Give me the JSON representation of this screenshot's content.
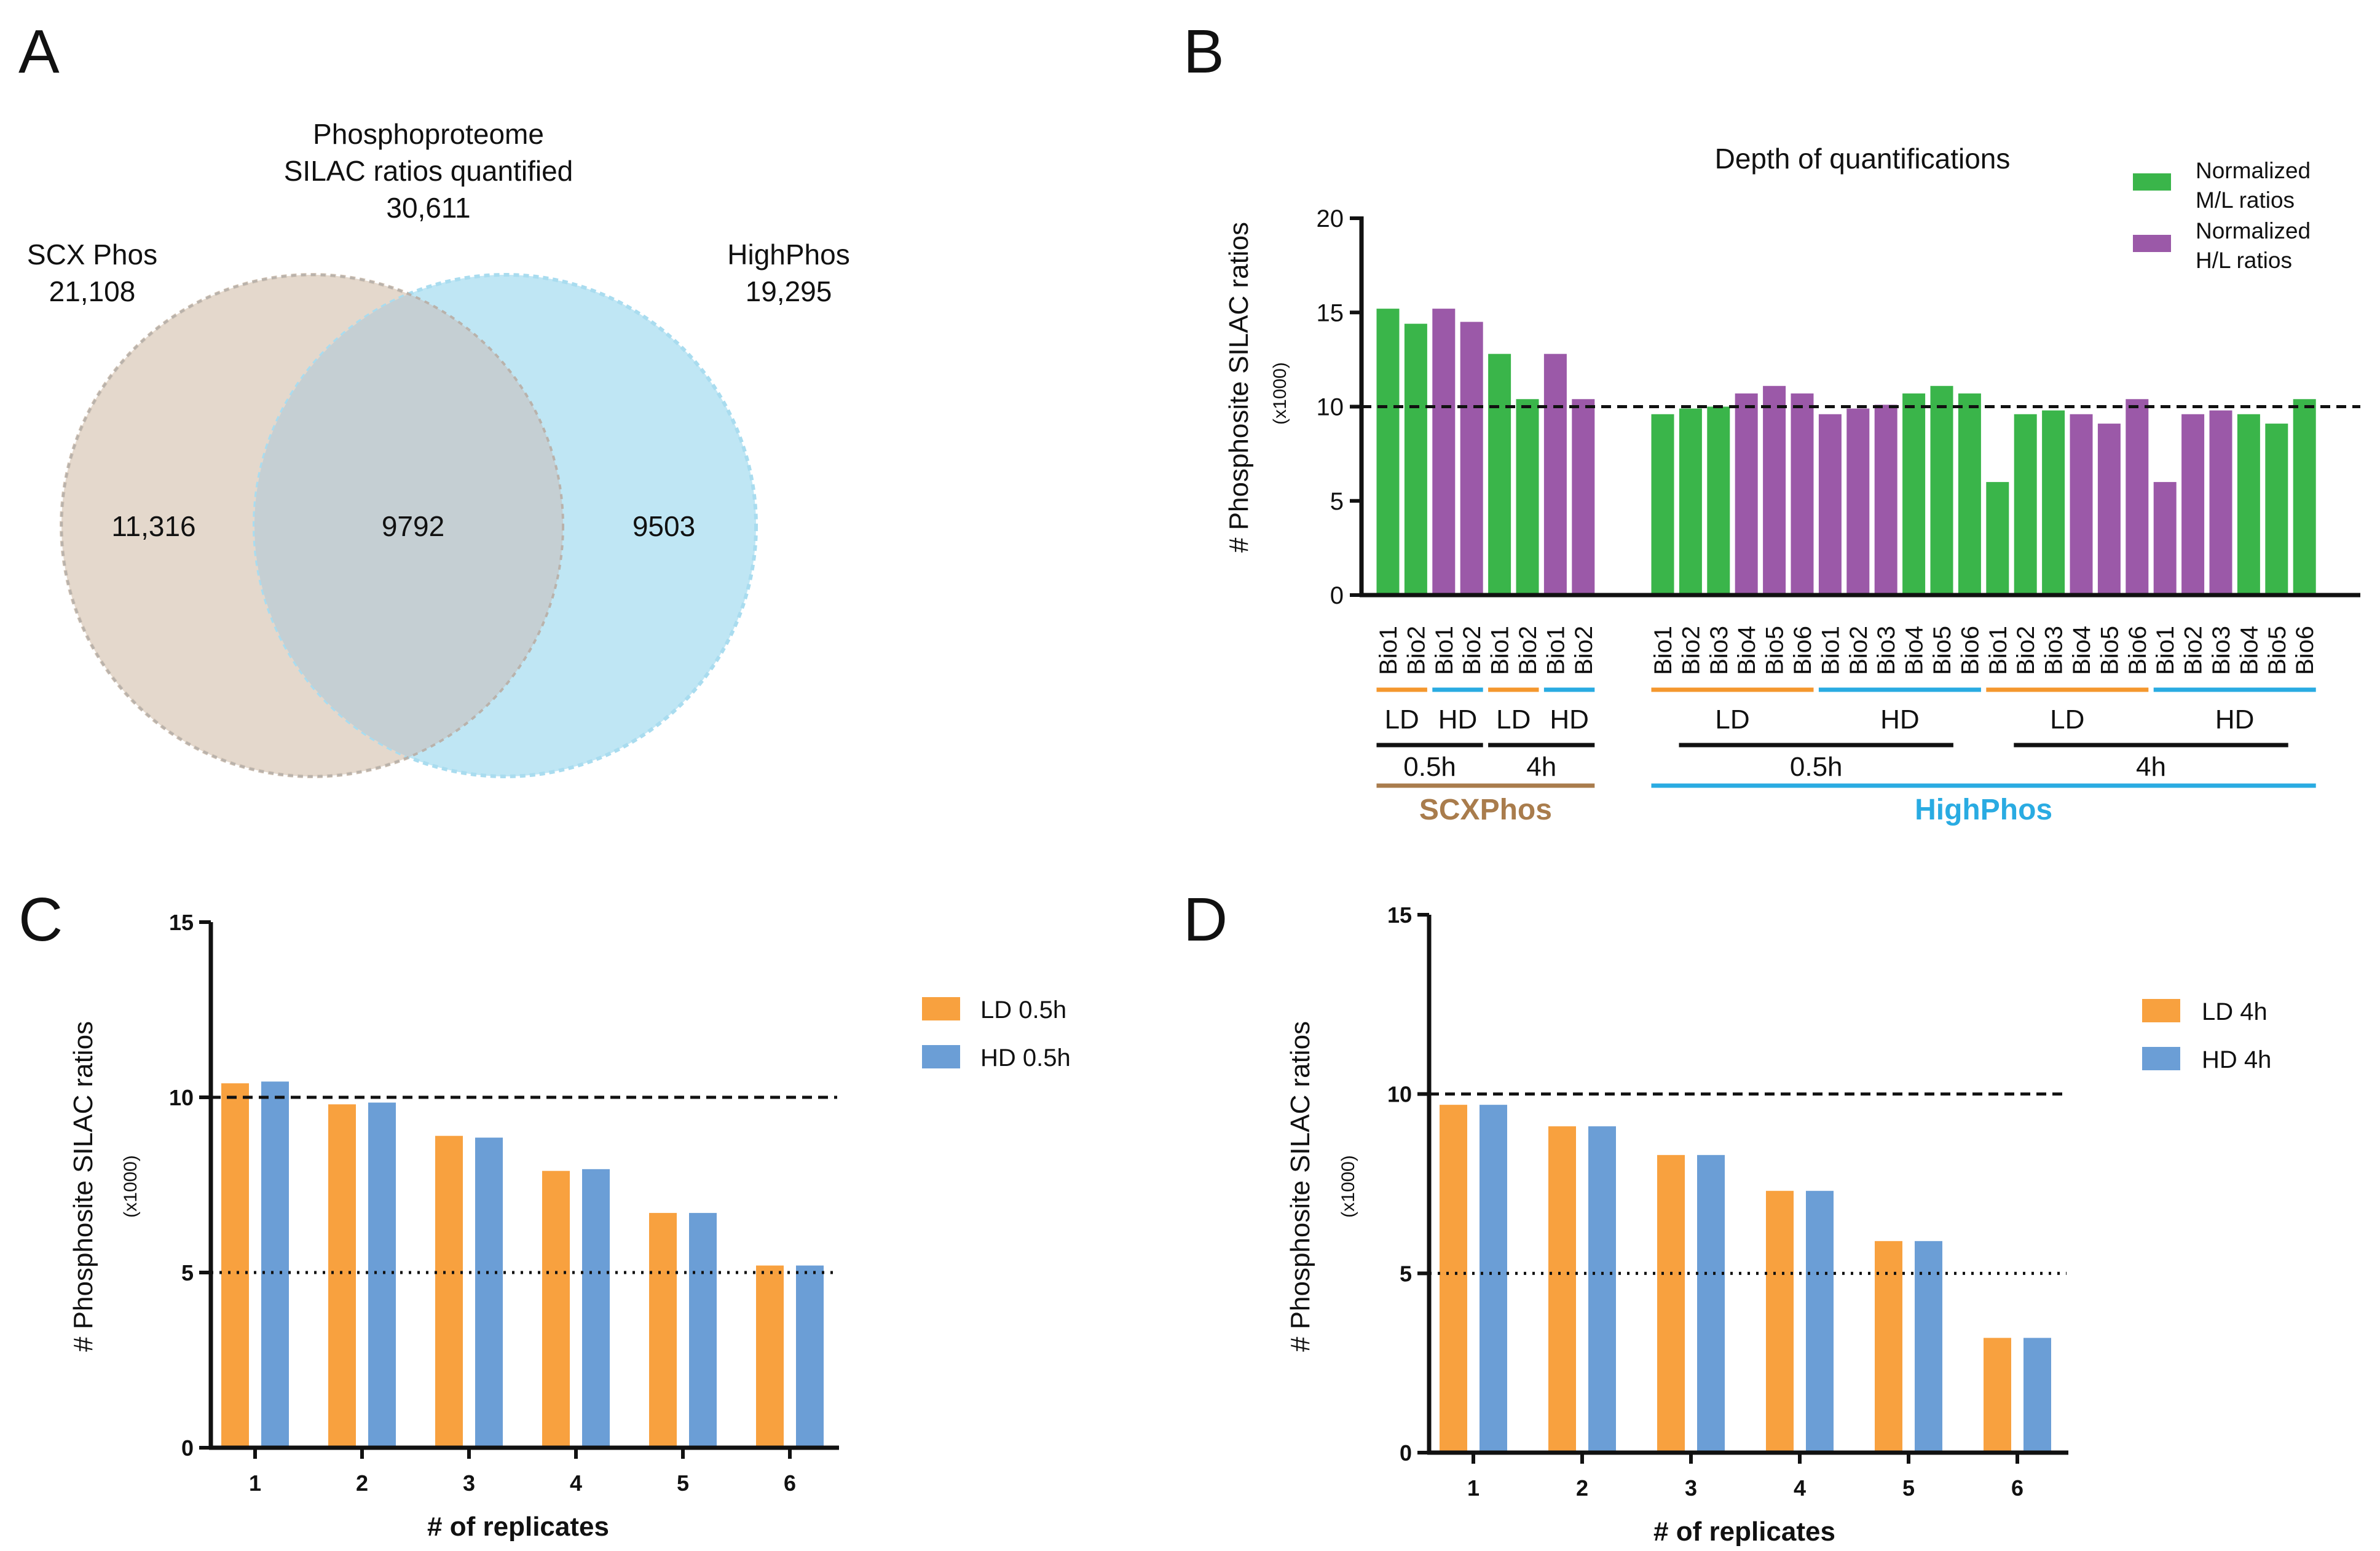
{
  "panels": {
    "a": "A",
    "b": "B",
    "c": "C",
    "d": "D"
  },
  "colors": {
    "scx": "#e4d8cc",
    "high": "#bfe6f4",
    "overlap": "#c5cfd3",
    "ml": "#3ab54a",
    "hl": "#9b59a8",
    "ld": "#f8a13f",
    "hd": "#6b9ed6",
    "orange_line": "#f4972e",
    "blue_line": "#29abe2",
    "scxphos": "#a97c4c",
    "highphos": "#29abe2"
  },
  "venn": {
    "title_line1": "Phosphoproteome",
    "title_line2": "SILAC ratios quantified",
    "total": "30,611",
    "left_name": "SCX Phos",
    "left_total": "21,108",
    "right_name": "HighPhos",
    "right_total": "19,295",
    "left_only": "11,316",
    "overlap": "9792",
    "right_only": "9503"
  },
  "chart_data": [
    {
      "id": "B",
      "type": "bar",
      "title": "Depth of quantifications",
      "ylabel": "# Phosphosite SILAC ratios",
      "ylabel_unit": "(x1000)",
      "ylim": [
        0,
        20
      ],
      "yticks": [
        "0",
        "5",
        "10",
        "15",
        "20"
      ],
      "reference_line": 10,
      "legend": [
        {
          "line1": "Normalized",
          "line2": "M/L ratios",
          "color": "ml"
        },
        {
          "line1": "Normalized",
          "line2": "H/L ratios",
          "color": "hl"
        }
      ],
      "categories": [
        "Bio1",
        "Bio2",
        "Bio1",
        "Bio2",
        "Bio1",
        "Bio2",
        "Bio1",
        "Bio2",
        "Bio1",
        "Bio2",
        "Bio3",
        "Bio4",
        "Bio5",
        "Bio6",
        "Bio1",
        "Bio2",
        "Bio3",
        "Bio4",
        "Bio5",
        "Bio6",
        "Bio1",
        "Bio2",
        "Bio3",
        "Bio4",
        "Bio5",
        "Bio6",
        "Bio1",
        "Bio2",
        "Bio3",
        "Bio4",
        "Bio5",
        "Bio6"
      ],
      "values": [
        15.2,
        14.4,
        15.2,
        14.5,
        12.8,
        10.4,
        12.8,
        10.4,
        9.6,
        9.9,
        10.0,
        10.7,
        11.1,
        10.7,
        9.6,
        9.9,
        10.1,
        10.7,
        11.1,
        10.7,
        6.0,
        9.6,
        9.8,
        9.6,
        9.1,
        10.4,
        6.0,
        9.6,
        9.8,
        9.6,
        9.1,
        10.4
      ],
      "bar_colors": [
        "ml",
        "ml",
        "hl",
        "hl",
        "ml",
        "ml",
        "hl",
        "hl",
        "ml",
        "ml",
        "ml",
        "hl",
        "hl",
        "hl",
        "hl",
        "hl",
        "hl",
        "ml",
        "ml",
        "ml",
        "ml",
        "ml",
        "ml",
        "hl",
        "hl",
        "hl",
        "hl",
        "hl",
        "hl",
        "ml",
        "ml",
        "ml"
      ],
      "dose_groups": [
        {
          "label": "LD",
          "first": 0,
          "last": 1,
          "color": "orange_line"
        },
        {
          "label": "HD",
          "first": 2,
          "last": 3,
          "color": "blue_line"
        },
        {
          "label": "LD",
          "first": 4,
          "last": 5,
          "color": "orange_line"
        },
        {
          "label": "HD",
          "first": 6,
          "last": 7,
          "color": "blue_line"
        },
        {
          "label": "LD",
          "first": 8,
          "last": 13,
          "color": "orange_line"
        },
        {
          "label": "HD",
          "first": 14,
          "last": 19,
          "color": "blue_line"
        },
        {
          "label": "LD",
          "first": 20,
          "last": 25,
          "color": "orange_line"
        },
        {
          "label": "HD",
          "first": 26,
          "last": 31,
          "color": "blue_line"
        }
      ],
      "time_groups": [
        {
          "label": "0.5h",
          "first": 0,
          "last": 3
        },
        {
          "label": "4h",
          "first": 4,
          "last": 7
        },
        {
          "label": "0.5h",
          "first": 8,
          "last": 19
        },
        {
          "label": "4h",
          "first": 20,
          "last": 31
        }
      ],
      "method_groups": [
        {
          "label": "SCXPhos",
          "first": 0,
          "last": 7,
          "color": "scxphos"
        },
        {
          "label": "HighPhos",
          "first": 8,
          "last": 31,
          "color": "highphos"
        }
      ]
    },
    {
      "id": "C",
      "type": "bar",
      "title": "",
      "xlabel": "# of replicates",
      "ylabel": "# Phosphosite SILAC ratios",
      "ylabel_unit": "(x1000)",
      "ylim": [
        0,
        15
      ],
      "yticks": [
        "0",
        "5",
        "10",
        "15"
      ],
      "categories": [
        "1",
        "2",
        "3",
        "4",
        "5",
        "6"
      ],
      "dashed_line": 10,
      "dotted_line": 5,
      "series": [
        {
          "name": "LD 0.5h",
          "color": "ld",
          "values": [
            10.4,
            9.8,
            8.9,
            7.9,
            6.7,
            5.2
          ]
        },
        {
          "name": "HD 0.5h",
          "color": "hd",
          "values": [
            10.45,
            9.85,
            8.85,
            7.95,
            6.7,
            5.2
          ]
        }
      ]
    },
    {
      "id": "D",
      "type": "bar",
      "title": "",
      "xlabel": "# of replicates",
      "ylabel": "# Phosphosite SILAC ratios",
      "ylabel_unit": "(x1000)",
      "ylim": [
        0,
        15
      ],
      "yticks": [
        "0",
        "5",
        "10",
        "15"
      ],
      "categories": [
        "1",
        "2",
        "3",
        "4",
        "5",
        "6"
      ],
      "dashed_line": 10,
      "dotted_line": 5,
      "series": [
        {
          "name": "LD 4h",
          "color": "ld",
          "values": [
            9.7,
            9.1,
            8.3,
            7.3,
            5.9,
            3.2
          ]
        },
        {
          "name": "HD 4h",
          "color": "hd",
          "values": [
            9.7,
            9.1,
            8.3,
            7.3,
            5.9,
            3.2
          ]
        }
      ]
    }
  ]
}
